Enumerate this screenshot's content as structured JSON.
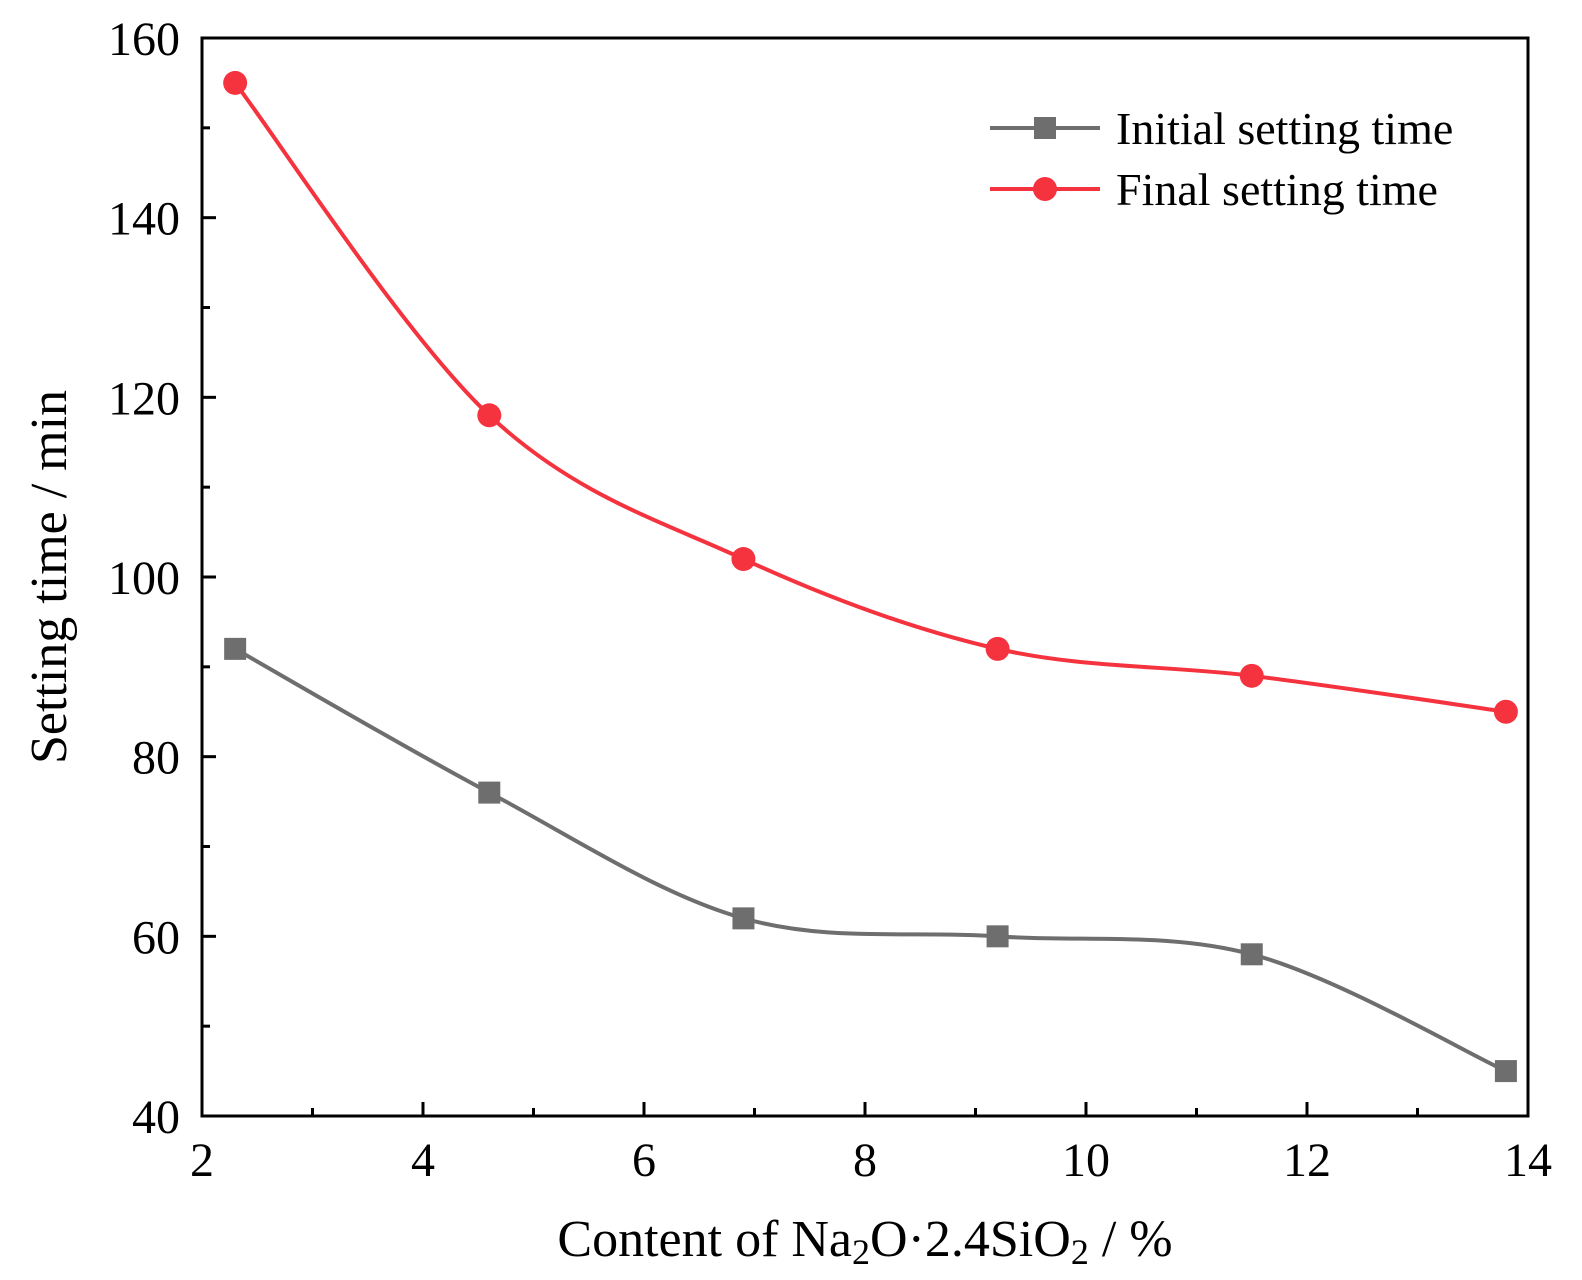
{
  "chart_data": {
    "type": "line",
    "title": "",
    "xlabel": {
      "prefix": "Content of Na",
      "sub1": "2",
      "mid": "O·2.4SiO",
      "sub2": "2",
      "suffix": " / %"
    },
    "ylabel": "Setting time / min",
    "xlim": [
      2,
      14
    ],
    "ylim": [
      40,
      160
    ],
    "xticks": [
      2,
      4,
      6,
      8,
      10,
      12,
      14
    ],
    "yticks": [
      40,
      60,
      80,
      100,
      120,
      140,
      160
    ],
    "legend_position": "top-right",
    "x": [
      2.3,
      4.6,
      6.9,
      9.2,
      11.5,
      13.8
    ],
    "series": [
      {
        "name": "Initial setting time",
        "color": "#6e6e6e",
        "marker": "square",
        "values": [
          92,
          76,
          62,
          60,
          58,
          45
        ]
      },
      {
        "name": "Final setting time",
        "color": "#f5333f",
        "marker": "circle",
        "values": [
          155,
          118,
          102,
          92,
          89,
          85
        ]
      }
    ]
  }
}
